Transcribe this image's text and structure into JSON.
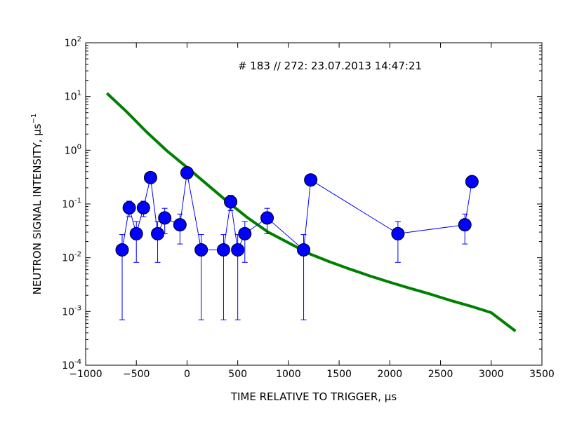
{
  "chart_data": {
    "type": "scatter",
    "annotation": "# 183 // 272: 23.07.2013 14:47:21",
    "xlabel": "TIME RELATIVE TO TRIGGER, μs",
    "ylabel": "NEUTRON SIGNAL INTENSITY, μs",
    "ylabel_superscript": "−1",
    "xlim": [
      -1000,
      3500
    ],
    "ylim": [
      0.0001,
      100
    ],
    "yscale": "log",
    "grid": false,
    "x_ticks": [
      {
        "value": -1000,
        "label": "−1000"
      },
      {
        "value": -500,
        "label": "−500"
      },
      {
        "value": 0,
        "label": "0"
      },
      {
        "value": 500,
        "label": "500"
      },
      {
        "value": 1000,
        "label": "1000"
      },
      {
        "value": 1500,
        "label": "1500"
      },
      {
        "value": 2000,
        "label": "2000"
      },
      {
        "value": 2500,
        "label": "2500"
      },
      {
        "value": 3000,
        "label": "3000"
      },
      {
        "value": 3500,
        "label": "3500"
      }
    ],
    "y_ticks": [
      {
        "value": 0.0001,
        "base": "10",
        "exp": "-4"
      },
      {
        "value": 0.001,
        "base": "10",
        "exp": "-3"
      },
      {
        "value": 0.01,
        "base": "10",
        "exp": "-2"
      },
      {
        "value": 0.1,
        "base": "10",
        "exp": "-1"
      },
      {
        "value": 1,
        "base": "10",
        "exp": "0"
      },
      {
        "value": 10,
        "base": "10",
        "exp": "1"
      },
      {
        "value": 100,
        "base": "10",
        "exp": "2"
      }
    ],
    "series": [
      {
        "color": "#0000ff",
        "marker": "circle",
        "points": [
          {
            "x": -640,
            "y": 0.014,
            "lo": 0.0007,
            "hi": 0.027
          },
          {
            "x": -570,
            "y": 0.085,
            "lo": 0.058,
            "hi": 0.113
          },
          {
            "x": -500,
            "y": 0.028,
            "lo": 0.0082,
            "hi": 0.047
          },
          {
            "x": -430,
            "y": 0.085,
            "lo": 0.058,
            "hi": 0.113
          },
          {
            "x": -360,
            "y": 0.31,
            "lo": 0.31,
            "hi": 0.31
          },
          {
            "x": -290,
            "y": 0.028,
            "lo": 0.0082,
            "hi": 0.047
          },
          {
            "x": -220,
            "y": 0.055,
            "lo": 0.028,
            "hi": 0.083
          },
          {
            "x": -70,
            "y": 0.041,
            "lo": 0.018,
            "hi": 0.065
          },
          {
            "x": 0,
            "y": 0.38,
            "lo": 0.38,
            "hi": 0.38
          },
          {
            "x": 140,
            "y": 0.014,
            "lo": 0.0007,
            "hi": 0.027
          },
          {
            "x": 360,
            "y": 0.014,
            "lo": 0.0007,
            "hi": 0.027
          },
          {
            "x": 430,
            "y": 0.11,
            "lo": 0.075,
            "hi": 0.145
          },
          {
            "x": 500,
            "y": 0.014,
            "lo": 0.0007,
            "hi": 0.027
          },
          {
            "x": 570,
            "y": 0.028,
            "lo": 0.0082,
            "hi": 0.047
          },
          {
            "x": 790,
            "y": 0.055,
            "lo": 0.028,
            "hi": 0.083
          },
          {
            "x": 1150,
            "y": 0.014,
            "lo": 0.0007,
            "hi": 0.027
          },
          {
            "x": 1220,
            "y": 0.28,
            "lo": 0.28,
            "hi": 0.28
          },
          {
            "x": 2080,
            "y": 0.028,
            "lo": 0.0082,
            "hi": 0.047
          },
          {
            "x": 2740,
            "y": 0.041,
            "lo": 0.018,
            "hi": 0.065
          },
          {
            "x": 2810,
            "y": 0.26,
            "lo": 0.26,
            "hi": 0.26
          }
        ]
      },
      {
        "color": "#008000",
        "style": "line",
        "points": [
          {
            "x": -790,
            "y": 11.5
          },
          {
            "x": -600,
            "y": 5.3
          },
          {
            "x": -400,
            "y": 2.2
          },
          {
            "x": -200,
            "y": 0.98
          },
          {
            "x": 0,
            "y": 0.48
          },
          {
            "x": 200,
            "y": 0.23
          },
          {
            "x": 400,
            "y": 0.11
          },
          {
            "x": 600,
            "y": 0.055
          },
          {
            "x": 800,
            "y": 0.03
          },
          {
            "x": 1000,
            "y": 0.019
          },
          {
            "x": 1200,
            "y": 0.012
          },
          {
            "x": 1400,
            "y": 0.0085
          },
          {
            "x": 1600,
            "y": 0.0062
          },
          {
            "x": 1800,
            "y": 0.0046
          },
          {
            "x": 2000,
            "y": 0.0035
          },
          {
            "x": 2200,
            "y": 0.0027
          },
          {
            "x": 2400,
            "y": 0.0021
          },
          {
            "x": 2600,
            "y": 0.0016
          },
          {
            "x": 2800,
            "y": 0.00125
          },
          {
            "x": 3000,
            "y": 0.00095
          },
          {
            "x": 3240,
            "y": 0.00043
          }
        ]
      }
    ]
  }
}
